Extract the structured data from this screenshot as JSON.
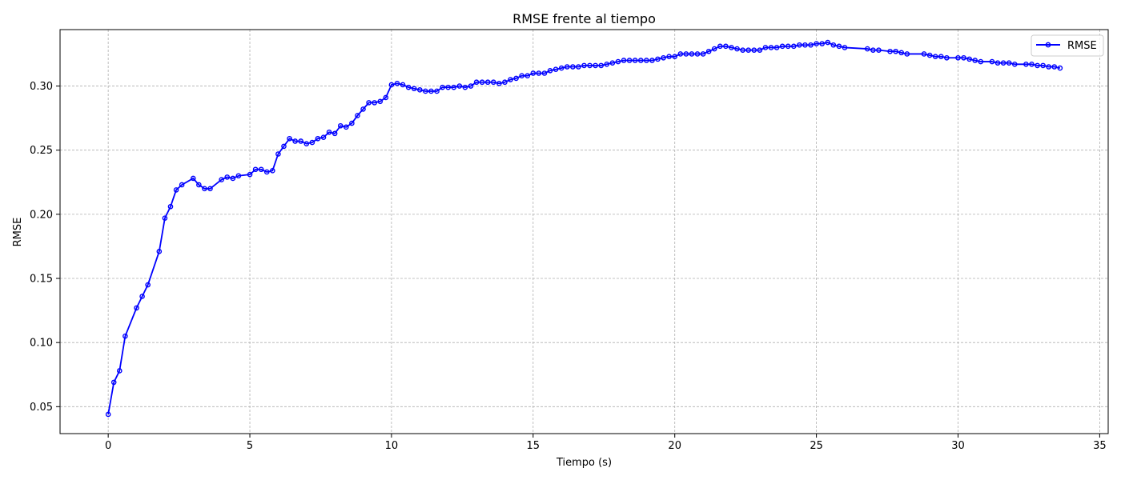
{
  "chart_data": {
    "type": "line",
    "title": "RMSE frente al tiempo",
    "xlabel": "Tiempo (s)",
    "ylabel": "RMSE",
    "xlim": [
      -1.7,
      35.3
    ],
    "ylim": [
      0.029,
      0.344
    ],
    "xticks": [
      0,
      5,
      10,
      15,
      20,
      25,
      30,
      35
    ],
    "xtick_labels": [
      "0",
      "5",
      "10",
      "15",
      "20",
      "25",
      "30",
      "35"
    ],
    "yticks": [
      0.05,
      0.1,
      0.15,
      0.2,
      0.25,
      0.3
    ],
    "ytick_labels": [
      "0.05",
      "0.10",
      "0.15",
      "0.20",
      "0.25",
      "0.30"
    ],
    "grid": true,
    "legend_position": "top-right",
    "series": [
      {
        "name": "RMSE",
        "color": "#0000ff",
        "marker": "circle-open",
        "points": [
          [
            0.0,
            0.044
          ],
          [
            0.2,
            0.069
          ],
          [
            0.4,
            0.078
          ],
          [
            0.6,
            0.105
          ],
          [
            1.0,
            0.127
          ],
          [
            1.2,
            0.136
          ],
          [
            1.4,
            0.145
          ],
          [
            1.8,
            0.171
          ],
          [
            2.0,
            0.197
          ],
          [
            2.2,
            0.206
          ],
          [
            2.4,
            0.219
          ],
          [
            2.6,
            0.223
          ],
          [
            3.0,
            0.228
          ],
          [
            3.2,
            0.223
          ],
          [
            3.4,
            0.22
          ],
          [
            3.6,
            0.22
          ],
          [
            4.0,
            0.227
          ],
          [
            4.2,
            0.229
          ],
          [
            4.4,
            0.228
          ],
          [
            4.6,
            0.23
          ],
          [
            5.0,
            0.231
          ],
          [
            5.2,
            0.235
          ],
          [
            5.4,
            0.235
          ],
          [
            5.6,
            0.233
          ],
          [
            5.8,
            0.234
          ],
          [
            6.0,
            0.247
          ],
          [
            6.2,
            0.253
          ],
          [
            6.4,
            0.259
          ],
          [
            6.6,
            0.257
          ],
          [
            6.8,
            0.257
          ],
          [
            7.0,
            0.255
          ],
          [
            7.2,
            0.256
          ],
          [
            7.4,
            0.259
          ],
          [
            7.6,
            0.26
          ],
          [
            7.8,
            0.264
          ],
          [
            8.0,
            0.263
          ],
          [
            8.2,
            0.269
          ],
          [
            8.4,
            0.268
          ],
          [
            8.6,
            0.271
          ],
          [
            8.8,
            0.277
          ],
          [
            9.0,
            0.282
          ],
          [
            9.2,
            0.287
          ],
          [
            9.4,
            0.287
          ],
          [
            9.6,
            0.288
          ],
          [
            9.8,
            0.291
          ],
          [
            10.0,
            0.301
          ],
          [
            10.2,
            0.302
          ],
          [
            10.4,
            0.301
          ],
          [
            10.6,
            0.299
          ],
          [
            10.8,
            0.298
          ],
          [
            11.0,
            0.297
          ],
          [
            11.2,
            0.296
          ],
          [
            11.4,
            0.296
          ],
          [
            11.6,
            0.296
          ],
          [
            11.8,
            0.299
          ],
          [
            12.0,
            0.299
          ],
          [
            12.2,
            0.299
          ],
          [
            12.4,
            0.3
          ],
          [
            12.6,
            0.299
          ],
          [
            12.8,
            0.3
          ],
          [
            13.0,
            0.303
          ],
          [
            13.2,
            0.303
          ],
          [
            13.4,
            0.303
          ],
          [
            13.6,
            0.303
          ],
          [
            13.8,
            0.302
          ],
          [
            14.0,
            0.303
          ],
          [
            14.2,
            0.305
          ],
          [
            14.4,
            0.306
          ],
          [
            14.6,
            0.308
          ],
          [
            14.8,
            0.308
          ],
          [
            15.0,
            0.31
          ],
          [
            15.2,
            0.31
          ],
          [
            15.4,
            0.31
          ],
          [
            15.6,
            0.312
          ],
          [
            15.8,
            0.313
          ],
          [
            16.0,
            0.314
          ],
          [
            16.2,
            0.315
          ],
          [
            16.4,
            0.315
          ],
          [
            16.6,
            0.315
          ],
          [
            16.8,
            0.316
          ],
          [
            17.0,
            0.316
          ],
          [
            17.2,
            0.316
          ],
          [
            17.4,
            0.316
          ],
          [
            17.6,
            0.317
          ],
          [
            17.8,
            0.318
          ],
          [
            18.0,
            0.319
          ],
          [
            18.2,
            0.32
          ],
          [
            18.4,
            0.32
          ],
          [
            18.6,
            0.32
          ],
          [
            18.8,
            0.32
          ],
          [
            19.0,
            0.32
          ],
          [
            19.2,
            0.32
          ],
          [
            19.4,
            0.321
          ],
          [
            19.6,
            0.322
          ],
          [
            19.8,
            0.323
          ],
          [
            20.0,
            0.323
          ],
          [
            20.2,
            0.325
          ],
          [
            20.4,
            0.325
          ],
          [
            20.6,
            0.325
          ],
          [
            20.8,
            0.325
          ],
          [
            21.0,
            0.325
          ],
          [
            21.2,
            0.327
          ],
          [
            21.4,
            0.329
          ],
          [
            21.6,
            0.331
          ],
          [
            21.8,
            0.331
          ],
          [
            22.0,
            0.33
          ],
          [
            22.2,
            0.329
          ],
          [
            22.4,
            0.328
          ],
          [
            22.6,
            0.328
          ],
          [
            22.8,
            0.328
          ],
          [
            23.0,
            0.328
          ],
          [
            23.2,
            0.33
          ],
          [
            23.4,
            0.33
          ],
          [
            23.6,
            0.33
          ],
          [
            23.8,
            0.331
          ],
          [
            24.0,
            0.331
          ],
          [
            24.2,
            0.331
          ],
          [
            24.4,
            0.332
          ],
          [
            24.6,
            0.332
          ],
          [
            24.8,
            0.332
          ],
          [
            25.0,
            0.333
          ],
          [
            25.2,
            0.333
          ],
          [
            25.4,
            0.334
          ],
          [
            25.6,
            0.332
          ],
          [
            25.8,
            0.331
          ],
          [
            26.0,
            0.33
          ],
          [
            26.8,
            0.329
          ],
          [
            27.0,
            0.328
          ],
          [
            27.2,
            0.328
          ],
          [
            27.6,
            0.327
          ],
          [
            27.8,
            0.327
          ],
          [
            28.0,
            0.326
          ],
          [
            28.2,
            0.325
          ],
          [
            28.8,
            0.325
          ],
          [
            29.0,
            0.324
          ],
          [
            29.2,
            0.323
          ],
          [
            29.4,
            0.323
          ],
          [
            29.6,
            0.322
          ],
          [
            30.0,
            0.322
          ],
          [
            30.2,
            0.322
          ],
          [
            30.4,
            0.321
          ],
          [
            30.6,
            0.32
          ],
          [
            30.8,
            0.319
          ],
          [
            31.2,
            0.319
          ],
          [
            31.4,
            0.318
          ],
          [
            31.6,
            0.318
          ],
          [
            31.8,
            0.318
          ],
          [
            32.0,
            0.317
          ],
          [
            32.4,
            0.317
          ],
          [
            32.6,
            0.317
          ],
          [
            32.8,
            0.316
          ],
          [
            33.0,
            0.316
          ],
          [
            33.2,
            0.315
          ],
          [
            33.4,
            0.315
          ],
          [
            33.6,
            0.314
          ]
        ]
      }
    ]
  }
}
